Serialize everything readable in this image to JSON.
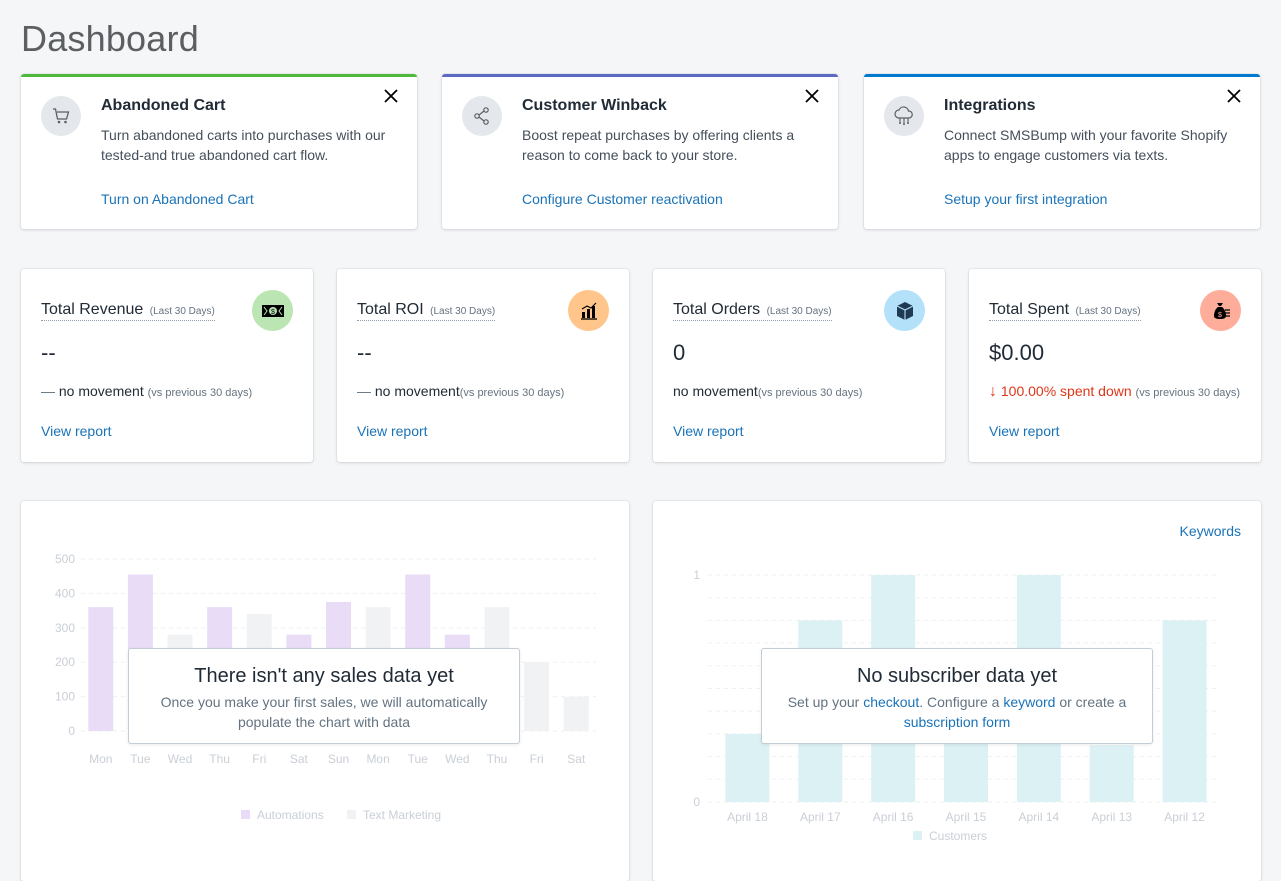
{
  "page": {
    "title": "Dashboard"
  },
  "promos": [
    {
      "title": "Abandoned Cart",
      "description": "Turn abandoned carts into purchases with our tested-and true abandoned cart flow.",
      "link": "Turn on Abandoned Cart",
      "icon": "cart-icon",
      "accent": "#50b83c"
    },
    {
      "title": "Customer Winback",
      "description": "Boost repeat purchases by offering clients a reason to come back to your store.",
      "link": "Configure Customer reactivation",
      "icon": "share-icon",
      "accent": "#5c6ac4"
    },
    {
      "title": "Integrations",
      "description": "Connect SMSBump with your favorite Shopify apps to engage customers via texts.",
      "link": "Setup your first integration",
      "icon": "cloud-network-icon",
      "accent": "#007ace"
    }
  ],
  "stats": [
    {
      "label": "Total Revenue",
      "period": "(Last 30 Days)",
      "value": "--",
      "prefix": "—",
      "movement": " no movement ",
      "compare": "(vs previous 30 days)",
      "report": "View report",
      "icon": "money-icon",
      "badge_color": "#bbe5b3"
    },
    {
      "label": "Total ROI",
      "period": "(Last 30 Days)",
      "value": "--",
      "prefix": "—",
      "movement": " no movement",
      "compare": "(vs previous 30 days)",
      "report": "View report",
      "icon": "bar-chart-icon",
      "badge_color": "#ffc58b"
    },
    {
      "label": "Total Orders",
      "period": "(Last 30 Days)",
      "value": "0",
      "prefix": "",
      "movement": " no movement",
      "compare": "(vs previous 30 days)",
      "report": "View report",
      "icon": "box-icon",
      "badge_color": "#b4e1fa"
    },
    {
      "label": "Total Spent",
      "period": "(Last 30 Days)",
      "value": "$0.00",
      "prefix": "↓",
      "movement": " 100.00% spent down ",
      "compare": "(vs previous 30 days)",
      "report": "View report",
      "icon": "money-bag-icon",
      "badge_color": "#fead9a"
    }
  ],
  "sales_panel": {
    "empty_title": "There isn't any sales data yet",
    "empty_text": "Once you make your first sales, we will automatically populate the chart with data"
  },
  "subscriber_panel": {
    "keywords_link": "Keywords",
    "empty_title": "No subscriber data yet",
    "text_1": "Set up your ",
    "link_checkout": "checkout",
    "text_2": ". Configure a ",
    "link_keyword": "keyword",
    "text_3": " or create a ",
    "link_form": "subscription form"
  },
  "chart_data": [
    {
      "type": "bar",
      "categories": [
        "Mon",
        "Tue",
        "Wed",
        "Thu",
        "Fri",
        "Sat",
        "Sun",
        "Mon",
        "Tue",
        "Wed",
        "Thu",
        "Fri",
        "Sat"
      ],
      "series": [
        {
          "name": "Automations",
          "color": "#e8dcf7",
          "values": [
            360,
            455,
            null,
            360,
            null,
            280,
            375,
            null,
            455,
            280,
            null,
            null,
            null
          ]
        },
        {
          "name": "Text Marketing",
          "color": "#f1f2f4",
          "values": [
            null,
            null,
            280,
            null,
            340,
            null,
            null,
            360,
            null,
            null,
            360,
            200,
            100
          ]
        }
      ],
      "yticks": [
        "500",
        "400",
        "300",
        "200",
        "100",
        "0"
      ],
      "ylim": [
        0,
        500
      ]
    },
    {
      "type": "bar",
      "categories": [
        "April 18",
        "April 17",
        "April 16",
        "April 15",
        "April 14",
        "April 13",
        "April 12"
      ],
      "series": [
        {
          "name": "Customers",
          "color": "#dcf1f4",
          "values": [
            0.3,
            0.8,
            1,
            0.4,
            1,
            0.25,
            0.8
          ]
        }
      ],
      "yticks": [
        "1",
        "0"
      ],
      "ylim": [
        0,
        1
      ]
    }
  ]
}
